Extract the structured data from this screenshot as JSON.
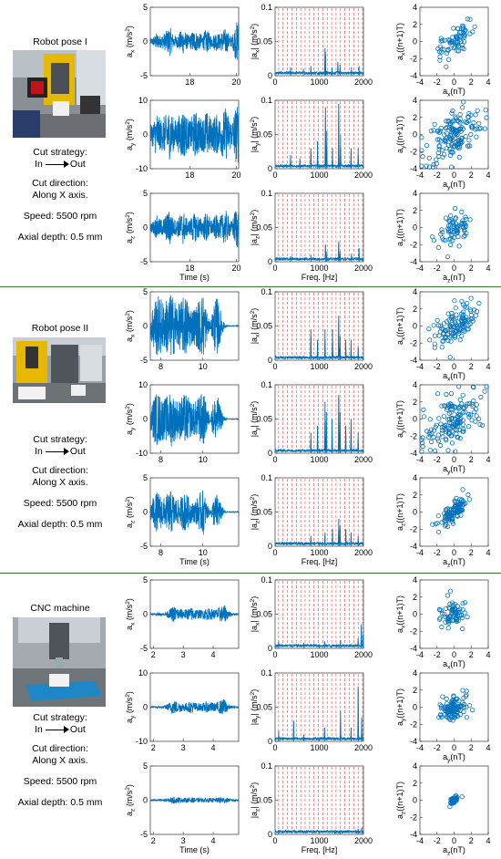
{
  "groups": [
    {
      "label": "Robot pose I",
      "strategy_label": "Cut strategy:",
      "strategy_from": "In",
      "strategy_to": "Out",
      "direction_label": "Cut direction:",
      "direction_value": "Along X axis.",
      "speed": "Speed: 5500 rpm",
      "depth": "Axial depth: 0.5 mm"
    },
    {
      "label": "Robot pose II",
      "strategy_label": "Cut strategy:",
      "strategy_from": "In",
      "strategy_to": "Out",
      "direction_label": "Cut direction:",
      "direction_value": "Along X axis.",
      "speed": "Speed: 5500 rpm",
      "depth": "Axial depth: 0.5 mm"
    },
    {
      "label": "CNC machine",
      "strategy_label": "Cut strategy:",
      "strategy_from": "In",
      "strategy_to": "Out",
      "direction_label": "Cut direction:",
      "direction_value": "Along X axis.",
      "speed": "Speed: 5500 rpm",
      "depth": "Axial depth: 0.5 mm"
    }
  ],
  "colors": {
    "signal": "#0072bd",
    "harmonic": "#e8453c",
    "separator": "#2e7d32"
  },
  "chart_data": [
    {
      "type": "line",
      "row": 0,
      "ylabel": "a_x (m/s^2)",
      "xlim": [
        16.3,
        20.1
      ],
      "ylim": [
        -5,
        5
      ],
      "xticks": [
        18,
        20
      ],
      "yticks": [
        -5,
        0,
        5
      ],
      "xlabel": "",
      "amplitude": [
        0.4,
        0.7,
        1.3,
        0.9,
        1.1,
        1.6,
        2.2,
        1.0,
        0.8,
        1.4,
        1.9,
        1.2,
        0.9,
        1.6,
        1.5,
        1.2,
        1.0,
        1.8,
        1.3,
        0.8,
        1.5,
        1.1,
        1.6,
        1.9,
        1.2,
        0.7,
        2.6,
        3.5
      ]
    },
    {
      "type": "line",
      "row": 0,
      "ylabel": "|a_x| (m/s^2)",
      "xlim": [
        0,
        2000
      ],
      "ylim": [
        0,
        0.1
      ],
      "xticks": [
        0,
        1000,
        2000
      ],
      "yticks": [
        0,
        0.05,
        0.1
      ],
      "xlabel": "",
      "peaks": [
        [
          350,
          0.012
        ],
        [
          640,
          0.01
        ],
        [
          810,
          0.014
        ],
        [
          1130,
          0.04
        ],
        [
          1140,
          0.035
        ],
        [
          1290,
          0.012
        ],
        [
          1420,
          0.02
        ],
        [
          1470,
          0.016
        ],
        [
          1730,
          0.012
        ],
        [
          1900,
          0.014
        ]
      ]
    },
    {
      "type": "scatter",
      "row": 0,
      "ylabel": "a_x((n+1)T)",
      "xlabel": "a_x(nT)",
      "xlim": [
        -4,
        4
      ],
      "ylim": [
        -4,
        4
      ],
      "xticks": [
        -4,
        -2,
        0,
        2,
        4
      ],
      "yticks": [
        -4,
        -2,
        0,
        2,
        4
      ],
      "spread": 0.9,
      "corr": 0.6,
      "n": 70
    },
    {
      "type": "line",
      "row": 1,
      "ylabel": "a_y (m/s^2)",
      "xlim": [
        16.3,
        20.1
      ],
      "ylim": [
        -10,
        10
      ],
      "xticks": [
        18,
        20
      ],
      "yticks": [
        -10,
        0,
        10
      ],
      "xlabel": "",
      "amplitude": [
        2.5,
        4.0,
        6.8,
        4.5,
        5.2,
        6.0,
        7.5,
        5.0,
        4.2,
        6.0,
        7.8,
        5.5,
        4.0,
        6.2,
        6.8,
        5.4,
        4.6,
        7.0,
        5.8,
        4.2,
        6.3,
        5.0,
        6.5,
        8.0,
        5.5,
        4.0,
        8.2,
        8.8
      ]
    },
    {
      "type": "line",
      "row": 1,
      "ylabel": "|a_y| (m/s^2)",
      "xlim": [
        0,
        2000
      ],
      "ylim": [
        0,
        0.1
      ],
      "xticks": [
        0,
        1000,
        2000
      ],
      "yticks": [
        0,
        0.05,
        0.1
      ],
      "xlabel": "",
      "peaks": [
        [
          350,
          0.02
        ],
        [
          560,
          0.015
        ],
        [
          810,
          0.03
        ],
        [
          960,
          0.04
        ],
        [
          1140,
          0.09
        ],
        [
          1170,
          0.055
        ],
        [
          1300,
          0.03
        ],
        [
          1440,
          0.095
        ],
        [
          1480,
          0.05
        ],
        [
          1720,
          0.03
        ],
        [
          1880,
          0.03
        ]
      ]
    },
    {
      "type": "scatter",
      "row": 1,
      "ylabel": "a_y((n+1)T)",
      "xlabel": "a_y(nT)",
      "xlim": [
        -4,
        4
      ],
      "ylim": [
        -4,
        4
      ],
      "xticks": [
        -4,
        -2,
        0,
        2,
        4
      ],
      "yticks": [
        -4,
        -2,
        0,
        2,
        4
      ],
      "spread": 1.7,
      "corr": 0.45,
      "n": 150
    },
    {
      "type": "line",
      "row": 2,
      "ylabel": "a_z (m/s^2)",
      "xlim": [
        16.3,
        20.1
      ],
      "ylim": [
        -5,
        5
      ],
      "xticks": [
        18,
        20
      ],
      "yticks": [
        -5,
        0,
        5
      ],
      "xlabel": "Time (s)",
      "amplitude": [
        0.5,
        1.0,
        1.8,
        1.2,
        1.4,
        2.0,
        2.8,
        1.3,
        1.1,
        1.8,
        2.6,
        1.4,
        1.1,
        2.0,
        2.1,
        1.6,
        1.2,
        2.4,
        1.7,
        1.0,
        1.9,
        1.4,
        2.0,
        2.6,
        1.5,
        0.9,
        2.9,
        3.2
      ]
    },
    {
      "type": "line",
      "row": 2,
      "ylabel": "|a_z| (m/s^2)",
      "xlim": [
        0,
        2000
      ],
      "ylim": [
        0,
        0.1
      ],
      "xticks": [
        0,
        1000,
        2000
      ],
      "yticks": [
        0,
        0.05,
        0.1
      ],
      "xlabel": "Freq. [Hz]",
      "peaks": [
        [
          350,
          0.008
        ],
        [
          810,
          0.01
        ],
        [
          1140,
          0.025
        ],
        [
          1170,
          0.015
        ],
        [
          1440,
          0.03
        ],
        [
          1470,
          0.015
        ],
        [
          1730,
          0.012
        ],
        [
          1900,
          0.02
        ]
      ]
    },
    {
      "type": "scatter",
      "row": 2,
      "ylabel": "a_z((n+1)T)",
      "xlabel": "a_z(nT)",
      "xlim": [
        -4,
        4
      ],
      "ylim": [
        -4,
        4
      ],
      "xticks": [
        -4,
        -2,
        0,
        2,
        4
      ],
      "yticks": [
        -4,
        -2,
        0,
        2,
        4
      ],
      "spread": 0.9,
      "corr": 0.35,
      "n": 70
    },
    {
      "type": "line",
      "row": 3,
      "ylabel": "a_x (m/s^2)",
      "xlim": [
        7.5,
        11.7
      ],
      "ylim": [
        -5,
        5
      ],
      "xticks": [
        8,
        10
      ],
      "yticks": [
        -5,
        0,
        5
      ],
      "xlabel": "",
      "amplitude": [
        2.0,
        3.8,
        4.6,
        4.2,
        3.5,
        4.4,
        4.8,
        3.9,
        3.2,
        4.0,
        4.6,
        3.4,
        2.6,
        3.0,
        4.2,
        4.9,
        2.2,
        0.4,
        3.6,
        4.3,
        2.0,
        0.3,
        0.05,
        0.05,
        0.05,
        0.05
      ]
    },
    {
      "type": "line",
      "row": 3,
      "ylabel": "|a_x| (m/s^2)",
      "xlim": [
        0,
        2000
      ],
      "ylim": [
        0,
        0.1
      ],
      "xticks": [
        0,
        1000,
        2000
      ],
      "yticks": [
        0,
        0.05,
        0.1
      ],
      "xlabel": "",
      "peaks": [
        [
          810,
          0.045
        ],
        [
          960,
          0.03
        ],
        [
          1130,
          0.045
        ],
        [
          1300,
          0.045
        ],
        [
          1440,
          0.065
        ],
        [
          1470,
          0.035
        ],
        [
          1600,
          0.03
        ],
        [
          1720,
          0.03
        ],
        [
          1880,
          0.02
        ]
      ]
    },
    {
      "type": "scatter",
      "row": 3,
      "ylabel": "a_x((n+1)T)",
      "xlabel": "a_x(nT)",
      "xlim": [
        -4,
        4
      ],
      "ylim": [
        -4,
        4
      ],
      "xticks": [
        -4,
        -2,
        0,
        2,
        4
      ],
      "yticks": [
        -4,
        -2,
        0,
        2,
        4
      ],
      "spread": 1.3,
      "corr": 0.55,
      "n": 120
    },
    {
      "type": "line",
      "row": 4,
      "ylabel": "a_y (m/s^2)",
      "xlim": [
        7.5,
        11.7
      ],
      "ylim": [
        -10,
        10
      ],
      "xticks": [
        8,
        10
      ],
      "yticks": [
        -10,
        0,
        10
      ],
      "xlabel": "",
      "amplitude": [
        3.0,
        6.5,
        8.0,
        6.8,
        6.0,
        7.2,
        8.2,
        6.2,
        5.5,
        6.8,
        7.5,
        6.0,
        4.5,
        5.5,
        7.2,
        8.0,
        4.0,
        0.8,
        6.2,
        7.0,
        3.0,
        0.5,
        0.1,
        0.1,
        0.1,
        0.1
      ]
    },
    {
      "type": "line",
      "row": 4,
      "ylabel": "|a_y| (m/s^2)",
      "xlim": [
        0,
        2000
      ],
      "ylim": [
        0,
        0.1
      ],
      "xticks": [
        0,
        1000,
        2000
      ],
      "yticks": [
        0,
        0.05,
        0.1
      ],
      "xlabel": "",
      "peaks": [
        [
          810,
          0.03
        ],
        [
          960,
          0.04
        ],
        [
          1130,
          0.075
        ],
        [
          1160,
          0.06
        ],
        [
          1290,
          0.05
        ],
        [
          1440,
          0.085
        ],
        [
          1470,
          0.06
        ],
        [
          1600,
          0.04
        ],
        [
          1720,
          0.05
        ],
        [
          1880,
          0.03
        ]
      ]
    },
    {
      "type": "scatter",
      "row": 4,
      "ylabel": "a_y((n+1)T)",
      "xlabel": "a_y(nT)",
      "xlim": [
        -4,
        4
      ],
      "ylim": [
        -4,
        4
      ],
      "xticks": [
        -4,
        -2,
        0,
        2,
        4
      ],
      "yticks": [
        -4,
        -2,
        0,
        2,
        4
      ],
      "spread": 1.7,
      "corr": 0.55,
      "n": 150
    },
    {
      "type": "line",
      "row": 5,
      "ylabel": "a_z (m/s^2)",
      "xlim": [
        7.5,
        11.7
      ],
      "ylim": [
        -5,
        5
      ],
      "xticks": [
        8,
        10
      ],
      "yticks": [
        -5,
        0,
        5
      ],
      "xlabel": "Time (s)",
      "amplitude": [
        1.2,
        2.4,
        3.0,
        2.5,
        2.0,
        2.8,
        3.2,
        2.2,
        1.8,
        2.5,
        3.0,
        2.0,
        1.4,
        1.8,
        2.8,
        3.4,
        1.2,
        0.3,
        2.2,
        2.8,
        1.2,
        0.2,
        0.05,
        0.05,
        0.05,
        0.05
      ]
    },
    {
      "type": "line",
      "row": 5,
      "ylabel": "|a_z| (m/s^2)",
      "xlim": [
        0,
        2000
      ],
      "ylim": [
        0,
        0.1
      ],
      "xticks": [
        0,
        1000,
        2000
      ],
      "yticks": [
        0,
        0.05,
        0.1
      ],
      "xlabel": "Freq. [Hz]",
      "peaks": [
        [
          810,
          0.015
        ],
        [
          1130,
          0.02
        ],
        [
          1300,
          0.025
        ],
        [
          1440,
          0.04
        ],
        [
          1470,
          0.03
        ],
        [
          1600,
          0.025
        ],
        [
          1720,
          0.02
        ],
        [
          1880,
          0.015
        ]
      ]
    },
    {
      "type": "scatter",
      "row": 5,
      "ylabel": "a_z((n+1)T)",
      "xlabel": "a_z(nT)",
      "xlim": [
        -4,
        4
      ],
      "ylim": [
        -4,
        4
      ],
      "xticks": [
        -4,
        -2,
        0,
        2,
        4
      ],
      "yticks": [
        -4,
        -2,
        0,
        2,
        4
      ],
      "spread": 0.85,
      "corr": 0.75,
      "n": 110
    },
    {
      "type": "line",
      "row": 6,
      "ylabel": "a_x (m/s^2)",
      "xlim": [
        1.9,
        4.85
      ],
      "ylim": [
        -5,
        5
      ],
      "xticks": [
        2,
        3,
        4
      ],
      "yticks": [
        -5,
        0,
        5
      ],
      "xlabel": "",
      "amplitude": [
        0.15,
        0.15,
        0.2,
        0.2,
        0.6,
        1.2,
        0.9,
        0.7,
        0.8,
        1.0,
        0.7,
        0.6,
        0.9,
        0.8,
        0.7,
        1.1,
        1.3,
        0.4,
        0.15,
        0.15
      ]
    },
    {
      "type": "line",
      "row": 6,
      "ylabel": "|a_x| (m/s^2)",
      "xlim": [
        0,
        2000
      ],
      "ylim": [
        0,
        0.1
      ],
      "xticks": [
        0,
        1000,
        2000
      ],
      "yticks": [
        0,
        0.05,
        0.1
      ],
      "xlabel": "",
      "peaks": [
        [
          80,
          0.01
        ],
        [
          650,
          0.008
        ],
        [
          1120,
          0.01
        ],
        [
          1480,
          0.012
        ],
        [
          1880,
          0.015
        ],
        [
          1950,
          0.035
        ],
        [
          1990,
          0.02
        ]
      ]
    },
    {
      "type": "scatter",
      "row": 6,
      "ylabel": "a_x((n+1)T)",
      "xlabel": "a_x(nT)",
      "xlim": [
        -4,
        4
      ],
      "ylim": [
        -4,
        4
      ],
      "xticks": [
        -4,
        -2,
        0,
        2,
        4
      ],
      "yticks": [
        -4,
        -2,
        0,
        2,
        4
      ],
      "spread": 0.75,
      "corr": 0.2,
      "n": 70
    },
    {
      "type": "line",
      "row": 7,
      "ylabel": "a_y (m/s^2)",
      "xlim": [
        1.9,
        4.85
      ],
      "ylim": [
        -10,
        10
      ],
      "xticks": [
        2,
        3,
        4
      ],
      "yticks": [
        -10,
        0,
        10
      ],
      "xlabel": "",
      "amplitude": [
        0.3,
        0.3,
        0.4,
        0.4,
        1.2,
        2.2,
        1.6,
        1.2,
        1.4,
        1.8,
        1.2,
        1.1,
        1.6,
        1.5,
        1.2,
        2.0,
        2.5,
        0.6,
        0.3,
        0.3
      ]
    },
    {
      "type": "line",
      "row": 7,
      "ylabel": "|a_y| (m/s^2)",
      "xlim": [
        0,
        2000
      ],
      "ylim": [
        0,
        0.1
      ],
      "xticks": [
        0,
        1000,
        2000
      ],
      "yticks": [
        0,
        0.05,
        0.1
      ],
      "xlabel": "",
      "peaks": [
        [
          80,
          0.015
        ],
        [
          420,
          0.03
        ],
        [
          650,
          0.01
        ],
        [
          1120,
          0.02
        ],
        [
          1480,
          0.045
        ],
        [
          1720,
          0.02
        ],
        [
          1880,
          0.08
        ],
        [
          1960,
          0.035
        ]
      ]
    },
    {
      "type": "scatter",
      "row": 7,
      "ylabel": "a_y((n+1)T)",
      "xlabel": "a_y(nT)",
      "xlim": [
        -4,
        4
      ],
      "ylim": [
        -4,
        4
      ],
      "xticks": [
        -4,
        -2,
        0,
        2,
        4
      ],
      "yticks": [
        -4,
        -2,
        0,
        2,
        4
      ],
      "spread": 0.75,
      "corr": 0.3,
      "n": 110
    },
    {
      "type": "line",
      "row": 8,
      "ylabel": "a_z (m/s^2)",
      "xlim": [
        1.9,
        4.85
      ],
      "ylim": [
        -5,
        5
      ],
      "xticks": [
        2,
        3,
        4
      ],
      "yticks": [
        -5,
        0,
        5
      ],
      "xlabel": "Time (s)",
      "amplitude": [
        0.15,
        0.15,
        0.15,
        0.2,
        0.3,
        0.5,
        0.4,
        0.3,
        0.35,
        0.4,
        0.3,
        0.3,
        0.35,
        0.3,
        0.3,
        0.45,
        0.5,
        0.2,
        0.15,
        0.15
      ]
    },
    {
      "type": "line",
      "row": 8,
      "ylabel": "|a_z| (m/s^2)",
      "xlim": [
        0,
        2000
      ],
      "ylim": [
        0,
        0.1
      ],
      "xticks": [
        0,
        1000,
        2000
      ],
      "yticks": [
        0,
        0.05,
        0.1
      ],
      "xlabel": "Freq. [Hz]",
      "peaks": [
        [
          80,
          0.006
        ],
        [
          1480,
          0.006
        ],
        [
          1880,
          0.008
        ],
        [
          1960,
          0.01
        ]
      ]
    },
    {
      "type": "scatter",
      "row": 8,
      "ylabel": "a_z((n+1)T)",
      "xlabel": "a_z(nT)",
      "xlim": [
        -4,
        4
      ],
      "ylim": [
        -4,
        4
      ],
      "xticks": [
        -4,
        -2,
        0,
        2,
        4
      ],
      "yticks": [
        -4,
        -2,
        0,
        2,
        4
      ],
      "spread": 0.22,
      "corr": 0.6,
      "n": 60
    }
  ]
}
